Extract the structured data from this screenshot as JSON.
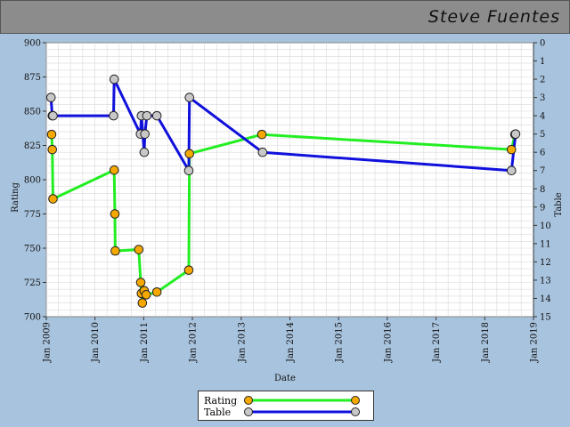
{
  "header": {
    "player_name": "Steve Fuentes"
  },
  "colors": {
    "background": "#a8c3dd",
    "header": "#8c8c8c",
    "rating_line": "#22ee22",
    "rating_marker": "#f5a800",
    "table_line": "#1010dd",
    "table_marker": "#c8c8c8",
    "grid": "#d8d8d8"
  },
  "chart_data": {
    "type": "line",
    "xlabel": "Date",
    "ylabel": "Rating",
    "y2label": "Table",
    "xlim": [
      "2009-01-01",
      "2019-01-01"
    ],
    "ylim": [
      700,
      900
    ],
    "y2lim": [
      15,
      0
    ],
    "x_ticks": [
      "Jan 2009",
      "Jan 2010",
      "Jan 2011",
      "Jan 2012",
      "Jan 2013",
      "Jan 2014",
      "Jan 2015",
      "Jan 2016",
      "Jan 2017",
      "Jan 2018",
      "Jan 2019"
    ],
    "y_ticks": [
      700,
      725,
      750,
      775,
      800,
      825,
      850,
      875,
      900
    ],
    "y2_ticks": [
      0,
      1,
      2,
      3,
      4,
      5,
      6,
      7,
      8,
      9,
      10,
      11,
      12,
      13,
      14,
      15
    ],
    "grid": true,
    "series": [
      {
        "name": "Rating",
        "axis": "left",
        "points": [
          [
            "2009-02-10",
            833
          ],
          [
            "2009-02-15",
            822
          ],
          [
            "2009-02-20",
            786
          ],
          [
            "2010-05-25",
            807
          ],
          [
            "2010-05-30",
            775
          ],
          [
            "2010-06-02",
            748
          ],
          [
            "2010-11-25",
            749
          ],
          [
            "2010-12-10",
            725
          ],
          [
            "2010-12-15",
            717
          ],
          [
            "2010-12-22",
            710
          ],
          [
            "2011-01-05",
            719
          ],
          [
            "2011-01-20",
            716
          ],
          [
            "2011-04-10",
            718
          ],
          [
            "2011-12-05",
            734
          ],
          [
            "2011-12-10",
            819
          ],
          [
            "2013-06-05",
            833
          ],
          [
            "2018-07-20",
            822
          ],
          [
            "2018-08-15",
            833
          ]
        ]
      },
      {
        "name": "Table",
        "axis": "right",
        "points": [
          [
            "2009-02-05",
            3
          ],
          [
            "2009-02-15",
            4
          ],
          [
            "2009-02-20",
            4
          ],
          [
            "2010-05-20",
            4
          ],
          [
            "2010-05-25",
            2
          ],
          [
            "2010-12-08",
            5
          ],
          [
            "2010-12-15",
            4
          ],
          [
            "2011-01-05",
            6
          ],
          [
            "2011-01-10",
            5
          ],
          [
            "2011-01-25",
            4
          ],
          [
            "2011-04-10",
            4
          ],
          [
            "2011-12-05",
            7
          ],
          [
            "2011-12-10",
            3
          ],
          [
            "2013-06-10",
            6
          ],
          [
            "2018-07-20",
            7
          ],
          [
            "2018-08-20",
            5
          ]
        ]
      }
    ]
  },
  "legend": {
    "rating_label": "Rating",
    "table_label": "Table"
  }
}
